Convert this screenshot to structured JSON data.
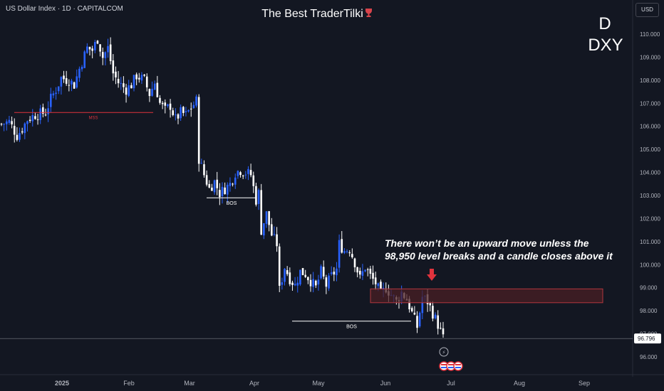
{
  "header": {
    "symbol_info": "US Dollar Index · 1D · CAPITALCOM",
    "title": "The Best TraderTilki",
    "timeframe": "D",
    "ticker": "DXY",
    "currency_button": "USD"
  },
  "annotation": {
    "line1": "There won’t be an upward move unless the",
    "line2": "98,950 level breaks and a candle closes above it"
  },
  "markers": {
    "mss": "MSS",
    "bos": "BOS"
  },
  "colors": {
    "background": "#131722",
    "up": "#2962ff",
    "down": "#ffffff",
    "zone_fill": "#4a1f24",
    "zone_border": "#b2373f",
    "mss": "#e0333d",
    "arrow": "#e0333d"
  },
  "chart_data": {
    "type": "candlestick",
    "price_axis": {
      "ticks": [
        "110.000",
        "109.000",
        "108.000",
        "107.000",
        "106.000",
        "105.000",
        "104.000",
        "103.000",
        "102.000",
        "101.000",
        "100.000",
        "99.000",
        "98.000",
        "97.000",
        "96.000"
      ],
      "range": [
        95.7,
        111.2
      ]
    },
    "time_axis": {
      "ticks": [
        "2025",
        "Feb",
        "Mar",
        "Apr",
        "May",
        "Jun",
        "Jul",
        "Aug",
        "Sep"
      ]
    },
    "last_price": "96.796",
    "resistance_zone": [
      98.35,
      98.95
    ],
    "mss_level": 106.6,
    "bos_levels": [
      102.9,
      97.55
    ],
    "close_path": [
      [
        0,
        106.1
      ],
      [
        3,
        106.2
      ],
      [
        6,
        105.6
      ],
      [
        8,
        105.9
      ],
      [
        10,
        106.3
      ],
      [
        13,
        106.5
      ],
      [
        17,
        106.6
      ],
      [
        19,
        107.2
      ],
      [
        21,
        107.6
      ],
      [
        23,
        108.1
      ],
      [
        26,
        108.0
      ],
      [
        28,
        107.8
      ],
      [
        30,
        108.5
      ],
      [
        33,
        109.4
      ],
      [
        35,
        109.3
      ],
      [
        37,
        109.8
      ],
      [
        39,
        109.0
      ],
      [
        41,
        109.4
      ],
      [
        43,
        108.3
      ],
      [
        45,
        107.9
      ],
      [
        48,
        107.6
      ],
      [
        50,
        107.8
      ],
      [
        52,
        108.2
      ],
      [
        55,
        108.0
      ],
      [
        57,
        107.4
      ],
      [
        59,
        107.9
      ],
      [
        61,
        107.0
      ],
      [
        63,
        106.7
      ],
      [
        65,
        106.9
      ],
      [
        67,
        106.3
      ],
      [
        69,
        106.6
      ],
      [
        71,
        106.5
      ],
      [
        73,
        106.8
      ],
      [
        75,
        107.1
      ],
      [
        76,
        104.6
      ],
      [
        78,
        103.9
      ],
      [
        80,
        103.3
      ],
      [
        82,
        103.6
      ],
      [
        84,
        103.1
      ],
      [
        86,
        103.3
      ],
      [
        88,
        103.5
      ],
      [
        90,
        104.0
      ],
      [
        92,
        104.1
      ],
      [
        94,
        104.0
      ],
      [
        96,
        103.9
      ],
      [
        98,
        102.8
      ],
      [
        99,
        103.1
      ],
      [
        100,
        101.5
      ],
      [
        102,
        102.2
      ],
      [
        104,
        101.3
      ],
      [
        106,
        100.9
      ],
      [
        107,
        98.9
      ],
      [
        109,
        99.9
      ],
      [
        111,
        99.4
      ],
      [
        113,
        99.1
      ],
      [
        115,
        99.7
      ],
      [
        117,
        99.6
      ],
      [
        119,
        99.3
      ],
      [
        121,
        99.0
      ],
      [
        123,
        99.7
      ],
      [
        125,
        99.1
      ],
      [
        127,
        99.5
      ],
      [
        129,
        99.8
      ],
      [
        130,
        100.9
      ],
      [
        132,
        100.6
      ],
      [
        134,
        100.7
      ],
      [
        136,
        100.1
      ],
      [
        138,
        99.4
      ],
      [
        140,
        99.9
      ],
      [
        142,
        99.5
      ],
      [
        144,
        99.2
      ],
      [
        146,
        98.7
      ],
      [
        148,
        99.0
      ],
      [
        150,
        98.7
      ],
      [
        152,
        98.4
      ],
      [
        154,
        98.8
      ],
      [
        156,
        98.5
      ],
      [
        158,
        97.9
      ],
      [
        160,
        97.3
      ],
      [
        162,
        98.6
      ],
      [
        164,
        98.4
      ],
      [
        166,
        97.9
      ],
      [
        168,
        97.4
      ],
      [
        170,
        96.8
      ]
    ],
    "first_time_index": 0,
    "events": [
      "⚡"
    ],
    "flags": 3
  }
}
